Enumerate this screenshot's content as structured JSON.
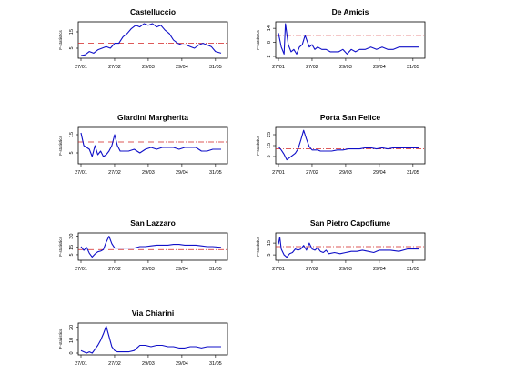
{
  "colors": {
    "series": "#1010c8",
    "threshold": "#d42020"
  },
  "chart_data": [
    {
      "type": "line",
      "title": "Castelluccio",
      "ylabel": "F-statistics",
      "xticks": [
        "27/01",
        "27/02",
        "29/03",
        "29/04",
        "31/05"
      ],
      "yticks": [
        5,
        15
      ],
      "ylim": [
        0,
        20
      ],
      "threshold": 8,
      "x": [
        0,
        0.03,
        0.06,
        0.09,
        0.12,
        0.15,
        0.18,
        0.21,
        0.24,
        0.27,
        0.3,
        0.33,
        0.36,
        0.39,
        0.42,
        0.45,
        0.48,
        0.51,
        0.54,
        0.57,
        0.6,
        0.63,
        0.66,
        0.69,
        0.72,
        0.75,
        0.78,
        0.81,
        0.84,
        0.87,
        0.9,
        0.93,
        0.96,
        1.0
      ],
      "y": [
        0.5,
        1,
        3,
        2,
        4,
        5,
        6,
        5,
        8,
        8,
        12,
        14,
        17,
        19,
        18,
        20,
        19,
        20,
        18,
        19,
        16,
        14,
        10,
        8,
        7,
        7,
        6,
        5,
        7,
        8,
        7,
        6,
        3,
        2
      ]
    },
    {
      "type": "line",
      "title": "De Amicis",
      "ylabel": "F-statistics",
      "xticks": [
        "27/01",
        "27/02",
        "29/03",
        "29/04",
        "31/05"
      ],
      "yticks": [
        2,
        8,
        14
      ],
      "ylim": [
        2,
        16
      ],
      "threshold": 11,
      "x": [
        0,
        0.02,
        0.04,
        0.05,
        0.07,
        0.09,
        0.11,
        0.13,
        0.15,
        0.17,
        0.19,
        0.22,
        0.24,
        0.26,
        0.28,
        0.31,
        0.34,
        0.37,
        0.4,
        0.43,
        0.46,
        0.49,
        0.52,
        0.55,
        0.58,
        0.62,
        0.66,
        0.7,
        0.74,
        0.78,
        0.82,
        0.86,
        0.9,
        0.94,
        1.0
      ],
      "y": [
        12,
        6,
        3,
        16,
        7,
        4,
        5,
        3,
        6,
        7,
        11,
        6,
        7,
        5,
        6,
        5,
        5,
        4,
        4,
        4,
        5,
        3,
        5,
        4,
        5,
        5,
        6,
        5,
        6,
        5,
        5,
        6,
        6,
        6,
        6
      ]
    },
    {
      "type": "line",
      "title": "Giardini Margherita",
      "ylabel": "F-statistics",
      "xticks": [
        "27/01",
        "27/02",
        "29/03",
        "29/04",
        "31/05"
      ],
      "yticks": [
        5,
        15
      ],
      "ylim": [
        0,
        18
      ],
      "threshold": 11,
      "x": [
        0,
        0.02,
        0.04,
        0.06,
        0.08,
        0.1,
        0.12,
        0.14,
        0.16,
        0.18,
        0.2,
        0.22,
        0.24,
        0.26,
        0.28,
        0.3,
        0.34,
        0.38,
        0.42,
        0.46,
        0.5,
        0.54,
        0.58,
        0.62,
        0.66,
        0.7,
        0.74,
        0.78,
        0.82,
        0.86,
        0.9,
        0.94,
        1.0
      ],
      "y": [
        16,
        9,
        8,
        7,
        3,
        9,
        4,
        6,
        3,
        4,
        6,
        9,
        15,
        9,
        6,
        6,
        6,
        7,
        5,
        7,
        8,
        7,
        8,
        8,
        8,
        7,
        8,
        8,
        8,
        6,
        6,
        7,
        7
      ]
    },
    {
      "type": "line",
      "title": "Porta San Felice",
      "ylabel": "F-statistics",
      "xticks": [
        "27/01",
        "27/02",
        "29/03",
        "29/04",
        "31/05"
      ],
      "yticks": [
        5,
        15,
        25
      ],
      "ylim": [
        0,
        30
      ],
      "threshold": 12,
      "x": [
        0,
        0.02,
        0.04,
        0.06,
        0.08,
        0.1,
        0.12,
        0.14,
        0.16,
        0.18,
        0.2,
        0.22,
        0.24,
        0.26,
        0.28,
        0.3,
        0.34,
        0.38,
        0.42,
        0.46,
        0.5,
        0.54,
        0.58,
        0.62,
        0.66,
        0.7,
        0.74,
        0.78,
        0.82,
        0.86,
        0.9,
        0.94,
        1.0
      ],
      "y": [
        14,
        11,
        7,
        2,
        4,
        6,
        8,
        12,
        20,
        29,
        21,
        14,
        11,
        11,
        11,
        10,
        10,
        10,
        11,
        11,
        12,
        12,
        12,
        13,
        13,
        12,
        13,
        12,
        13,
        13,
        13,
        13,
        13
      ]
    },
    {
      "type": "line",
      "title": "San Lazzaro",
      "ylabel": "F-statistics",
      "xticks": [
        "27/01",
        "27/02",
        "29/03",
        "29/04",
        "31/05"
      ],
      "yticks": [
        5,
        15,
        30
      ],
      "ylim": [
        0,
        32
      ],
      "threshold": 12,
      "x": [
        0,
        0.02,
        0.04,
        0.06,
        0.08,
        0.1,
        0.12,
        0.14,
        0.16,
        0.18,
        0.2,
        0.22,
        0.24,
        0.26,
        0.3,
        0.34,
        0.38,
        0.42,
        0.46,
        0.5,
        0.54,
        0.58,
        0.62,
        0.66,
        0.7,
        0.74,
        0.78,
        0.82,
        0.86,
        0.9,
        0.94,
        1.0
      ],
      "y": [
        16,
        11,
        15,
        7,
        2,
        6,
        9,
        10,
        12,
        22,
        30,
        20,
        14,
        14,
        14,
        14,
        14,
        16,
        16,
        17,
        18,
        18,
        18,
        19,
        19,
        18,
        18,
        18,
        17,
        16,
        16,
        15
      ]
    },
    {
      "type": "line",
      "title": "San Pietro Capofiume",
      "ylabel": "F-statistics",
      "xticks": [
        "27/01",
        "27/02",
        "29/03",
        "29/04",
        "31/05"
      ],
      "yticks": [
        5,
        15
      ],
      "ylim": [
        2,
        22
      ],
      "threshold": 12,
      "x": [
        0,
        0.01,
        0.02,
        0.04,
        0.06,
        0.08,
        0.1,
        0.12,
        0.14,
        0.16,
        0.18,
        0.2,
        0.22,
        0.24,
        0.26,
        0.28,
        0.3,
        0.32,
        0.34,
        0.36,
        0.4,
        0.44,
        0.48,
        0.52,
        0.56,
        0.6,
        0.64,
        0.68,
        0.72,
        0.76,
        0.8,
        0.86,
        0.92,
        1.0
      ],
      "y": [
        14,
        20,
        10,
        5,
        3,
        6,
        7,
        10,
        9,
        10,
        13,
        9,
        15,
        10,
        9,
        11,
        8,
        7,
        9,
        6,
        7,
        6,
        7,
        8,
        8,
        9,
        8,
        7,
        9,
        9,
        9,
        8,
        10,
        10
      ]
    },
    {
      "type": "line",
      "title": "Via Chiarini",
      "ylabel": "F-statistics",
      "xticks": [
        "27/01",
        "27/02",
        "29/03",
        "29/04",
        "31/05"
      ],
      "yticks": [
        0,
        10,
        20
      ],
      "ylim": [
        0,
        22
      ],
      "threshold": 11,
      "x": [
        0,
        0.02,
        0.04,
        0.06,
        0.08,
        0.1,
        0.12,
        0.14,
        0.16,
        0.18,
        0.2,
        0.22,
        0.24,
        0.26,
        0.3,
        0.34,
        0.38,
        0.42,
        0.46,
        0.5,
        0.54,
        0.58,
        0.62,
        0.66,
        0.7,
        0.74,
        0.78,
        0.82,
        0.86,
        0.9,
        0.94,
        1.0
      ],
      "y": [
        2,
        1,
        0,
        1,
        0,
        3,
        6,
        10,
        15,
        21,
        13,
        5,
        2,
        1,
        1,
        1,
        2,
        6,
        6,
        5,
        6,
        6,
        5,
        5,
        4,
        4,
        5,
        5,
        4,
        5,
        5,
        5
      ]
    }
  ]
}
